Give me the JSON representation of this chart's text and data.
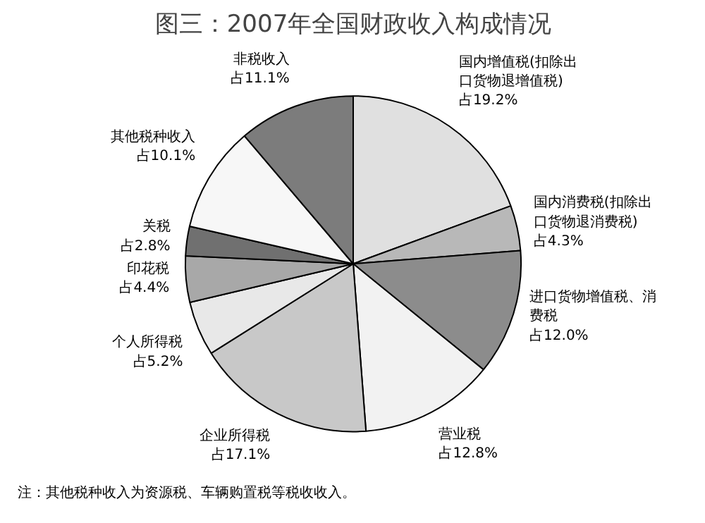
{
  "chart_data": {
    "type": "pie",
    "title": "图三：2007年全国财政收入构成情况",
    "categories": [
      "国内增值税(扣除出口货物退增值税)",
      "国内消费税(扣除出口货物退消费税)",
      "进口货物增值税、消费税",
      "营业税",
      "企业所得税",
      "个人所得税",
      "印花税",
      "关税",
      "其他税种收入",
      "非税收入"
    ],
    "values": [
      19.2,
      4.3,
      12.0,
      12.8,
      17.1,
      5.2,
      4.4,
      2.8,
      10.1,
      11.1
    ],
    "value_labels": [
      "占19.2%",
      "占4.3%",
      "占12.0%",
      "占12.8%",
      "占17.1%",
      "占5.2%",
      "占4.4%",
      "占2.8%",
      "占10.1%",
      "占11.1%"
    ],
    "colors": [
      "#e0e0e0",
      "#b8b8b8",
      "#8c8c8c",
      "#f2f2f2",
      "#c8c8c8",
      "#e8e8e8",
      "#a8a8a8",
      "#707070",
      "#f7f7f7",
      "#7c7c7c"
    ],
    "annotations": [
      "注：其他税种收入为资源税、车辆购置税等税收收入。"
    ]
  }
}
